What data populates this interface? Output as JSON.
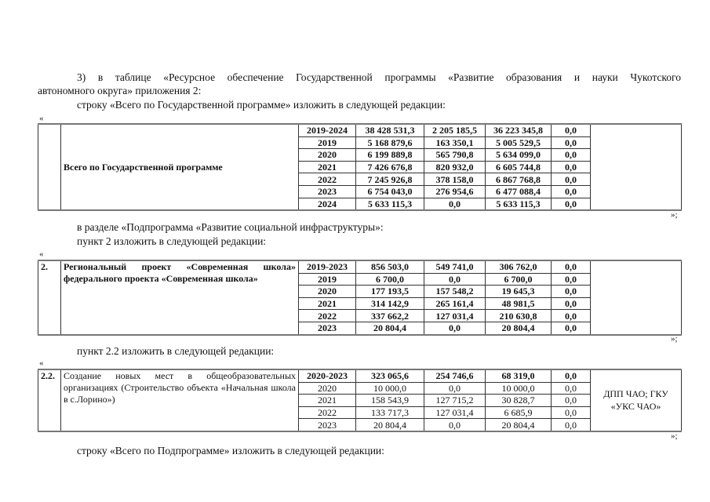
{
  "intro": {
    "line1": "3) в таблице «Ресурсное обеспечение Государственной программы «Развитие образования и науки Чукотского",
    "line2": "автономного округа» приложения 2:",
    "line3": "строку «Всего по Государственной программе» изложить в следующей редакции:"
  },
  "quote_open": "«",
  "quote_close": "»;",
  "table1": {
    "num": "",
    "name": "Всего по Государственной программе",
    "bold": true,
    "last": "",
    "rows": [
      [
        "2019-2024",
        "38 428 531,3",
        "2 205 185,5",
        "36 223 345,8",
        "0,0"
      ],
      [
        "2019",
        "5 168 879,6",
        "163 350,1",
        "5 005 529,5",
        "0,0"
      ],
      [
        "2020",
        "6 199 889,8",
        "565 790,8",
        "5 634 099,0",
        "0,0"
      ],
      [
        "2021",
        "7 426 676,8",
        "820 932,0",
        "6 605 744,8",
        "0,0"
      ],
      [
        "2022",
        "7 245 926,8",
        "378 158,0",
        "6 867 768,8",
        "0,0"
      ],
      [
        "2023",
        "6 754 043,0",
        "276 954,6",
        "6 477 088,4",
        "0,0"
      ],
      [
        "2024",
        "5 633 115,3",
        "0,0",
        "5 633 115,3",
        "0,0"
      ]
    ]
  },
  "section2": {
    "line1": "в разделе «Подпрограмма «Развитие социальной инфраструктуры»:",
    "line2": "пункт 2 изложить в следующей редакции:"
  },
  "table2": {
    "num": "2.",
    "name": "Региональный проект «Современная школа» федерального проекта «Современная школа»",
    "bold": true,
    "last": "",
    "rows": [
      [
        "2019-2023",
        "856 503,0",
        "549 741,0",
        "306 762,0",
        "0,0"
      ],
      [
        "2019",
        "6 700,0",
        "0,0",
        "6 700,0",
        "0,0"
      ],
      [
        "2020",
        "177 193,5",
        "157 548,2",
        "19 645,3",
        "0,0"
      ],
      [
        "2021",
        "314 142,9",
        "265 161,4",
        "48 981,5",
        "0,0"
      ],
      [
        "2022",
        "337 662,2",
        "127 031,4",
        "210 630,8",
        "0,0"
      ],
      [
        "2023",
        "20 804,4",
        "0,0",
        "20 804,4",
        "0,0"
      ]
    ]
  },
  "section3": {
    "line1": "пункт 2.2 изложить в следующей редакции:"
  },
  "table3": {
    "num": "2.2.",
    "name": "Создание новых мест в общеобразовательных организациях (Строительство объекта «Начальная школа в с.Лорино»)",
    "bold": false,
    "last": "ДПП ЧАО; ГКУ «УКС ЧАО»",
    "rows": [
      [
        "2020-2023",
        "323 065,6",
        "254 746,6",
        "68 319,0",
        "0,0"
      ],
      [
        "2020",
        "10 000,0",
        "0,0",
        "10 000,0",
        "0,0"
      ],
      [
        "2021",
        "158 543,9",
        "127 715,2",
        "30 828,7",
        "0,0"
      ],
      [
        "2022",
        "133 717,3",
        "127 031,4",
        "6 685,9",
        "0,0"
      ],
      [
        "2023",
        "20 804,4",
        "0,0",
        "20 804,4",
        "0,0"
      ]
    ]
  },
  "section4": {
    "line1": "строку «Всего по Подпрограмме» изложить в следующей редакции:"
  }
}
